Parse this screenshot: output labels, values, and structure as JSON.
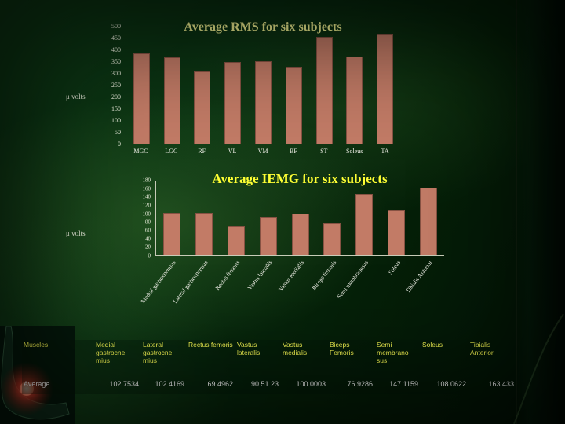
{
  "slide": {
    "bar_color": "#c27b66",
    "background_color": "#06270d",
    "accent_title_color": "#ffff66"
  },
  "chart_data": [
    {
      "type": "bar",
      "title": "Average RMS for six subjects",
      "title_color": "#ffff99",
      "ylabel": "μ volts",
      "categories": [
        "MGC",
        "LGC",
        "RF",
        "VL",
        "VM",
        "BF",
        "ST",
        "Soleus",
        "TA"
      ],
      "values": [
        385,
        370,
        310,
        348,
        352,
        328,
        458,
        372,
        470
      ],
      "ylim": [
        0,
        500
      ],
      "ytick_step": 50,
      "grid": false,
      "legend": "none",
      "bar_color": "#c27b66"
    },
    {
      "type": "bar",
      "title": "Average IEMG for six subjects",
      "title_color": "#ffff33",
      "ylabel": "μ volts",
      "categories": [
        "Medial gastrocnemius",
        "Lateral gastrocnemius",
        "Rectus femoris",
        "Vastus lateralis",
        "Vastus medialis",
        "Biceps femoris",
        "Semi membranosus",
        "Soleus",
        "Tibialis Anterior"
      ],
      "values": [
        102.7534,
        102.4169,
        69.4962,
        90.5123,
        100.0003,
        76.9286,
        147.1159,
        108.0622,
        163.433
      ],
      "ylim": [
        0,
        180
      ],
      "ytick_step": 20,
      "grid": false,
      "legend": "none",
      "bar_color": "#c27b66"
    }
  ],
  "table": {
    "header_label": "Muscles",
    "row_label": "Average",
    "columns": [
      "Medial gastrocne mius",
      "Lateral gastrocne mius",
      "Rectus femoris",
      "Vastus lateralis",
      "Vastus medialis",
      "Biceps Femoris",
      "Semi membrano sus",
      "Soleus",
      "Tibialis Anterior"
    ],
    "values": [
      "102.7534",
      "102.4169",
      "69.4962",
      "90.51.23",
      "100.0003",
      "76.9286",
      "147.1159",
      "108.0622",
      "163.433"
    ]
  },
  "decor": {
    "leg_image": "ankle-with-red-glow"
  }
}
